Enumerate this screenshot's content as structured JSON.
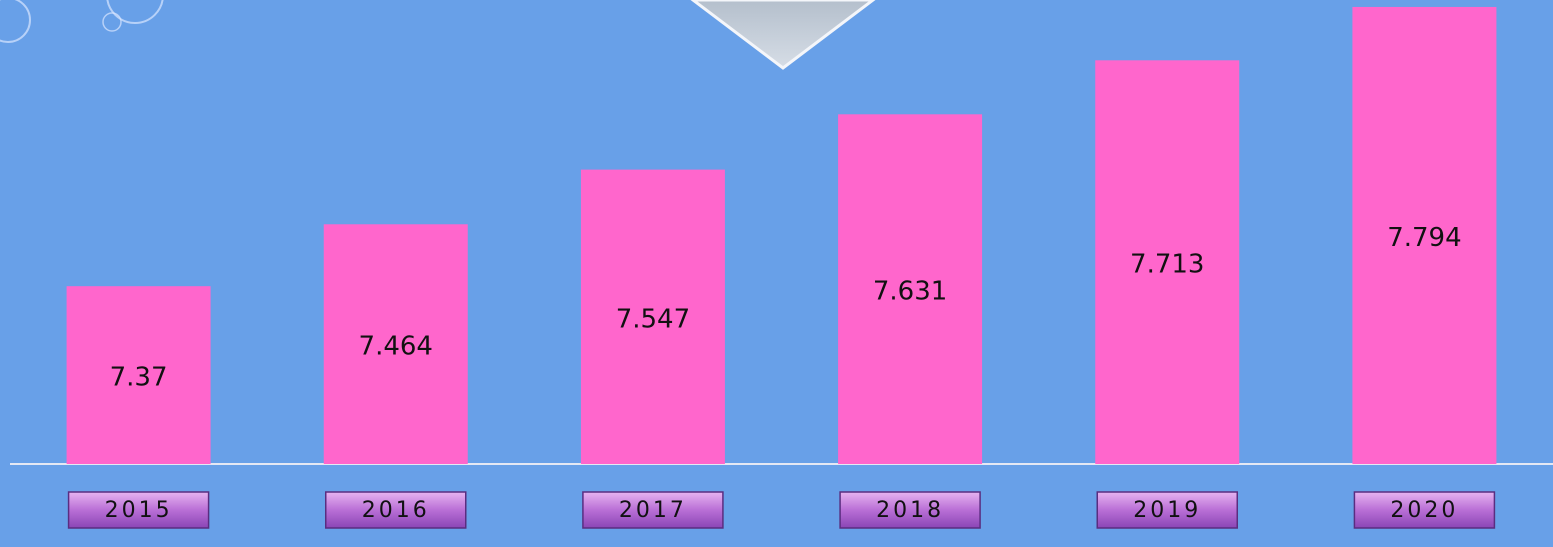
{
  "chart_data": {
    "type": "bar",
    "categories": [
      "2015",
      "2016",
      "2017",
      "2018",
      "2019",
      "2020"
    ],
    "values": [
      7.37,
      7.464,
      7.547,
      7.631,
      7.713,
      7.794
    ],
    "color": "#ff66cc",
    "ylim": [
      7.1,
      7.8
    ]
  }
}
